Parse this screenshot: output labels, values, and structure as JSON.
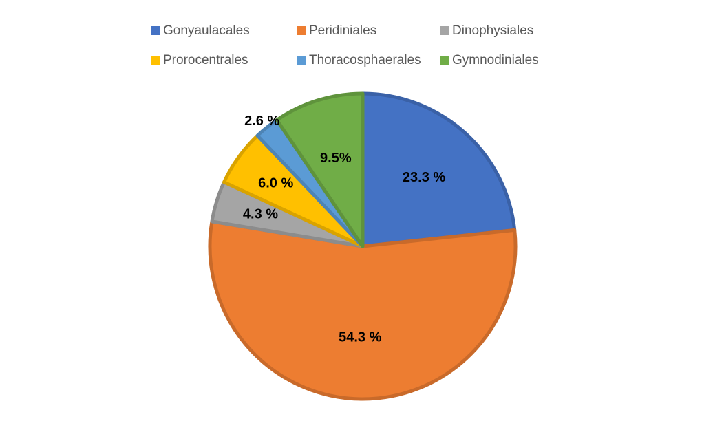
{
  "chart_data": {
    "type": "pie",
    "categories": [
      "Gonyaulacales",
      "Peridiniales",
      "Dinophysiales",
      "Prorocentrales",
      "Thoracosphaerales",
      "Gymnodiniales"
    ],
    "values": [
      23.3,
      54.3,
      4.3,
      6.0,
      2.6,
      9.5
    ],
    "value_labels": [
      "23.3 %",
      "54.3 %",
      "4.3 %",
      "6.0 %",
      "2.6 %",
      "9.5%"
    ],
    "colors": [
      "#4472c4",
      "#ed7d31",
      "#a5a5a5",
      "#ffc000",
      "#5b9bd5",
      "#70ad47"
    ],
    "legend": "top"
  }
}
